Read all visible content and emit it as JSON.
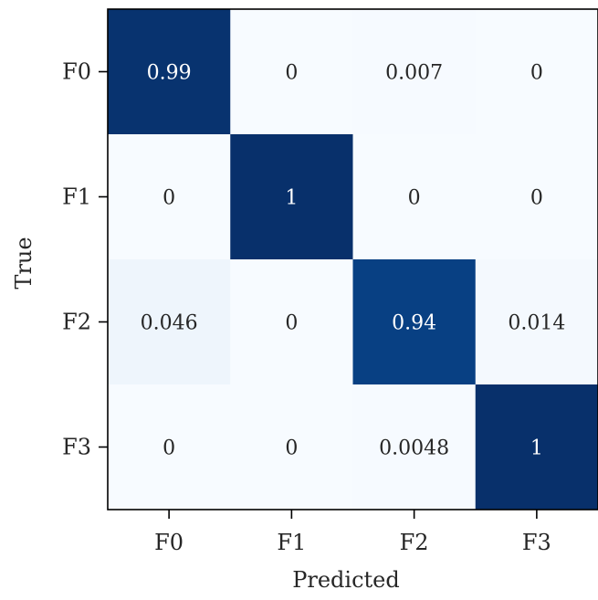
{
  "chart_data": {
    "type": "heatmap",
    "title": "",
    "xlabel": "Predicted",
    "ylabel": "True",
    "x_categories": [
      "F0",
      "F1",
      "F2",
      "F3"
    ],
    "y_categories": [
      "F0",
      "F1",
      "F2",
      "F3"
    ],
    "values": [
      [
        0.99,
        0,
        0.007,
        0
      ],
      [
        0,
        1,
        0,
        0
      ],
      [
        0.046,
        0,
        0.94,
        0.014
      ],
      [
        0,
        0,
        0.0048,
        1
      ]
    ],
    "cell_labels": [
      [
        "0.99",
        "0",
        "0.007",
        "0"
      ],
      [
        "0",
        "1",
        "0",
        "0"
      ],
      [
        "0.046",
        "0",
        "0.94",
        "0.014"
      ],
      [
        "0",
        "0",
        "0.0048",
        "1"
      ]
    ],
    "value_range": [
      0,
      1
    ],
    "colormap": "Blues",
    "colorbar": false,
    "grid": false,
    "legend": "none"
  },
  "colors": {
    "scale_low": "#f7fbff",
    "scale_high": "#08306b",
    "axis": "#000000",
    "text_dark": "#262626",
    "text_light": "#ffffff"
  }
}
